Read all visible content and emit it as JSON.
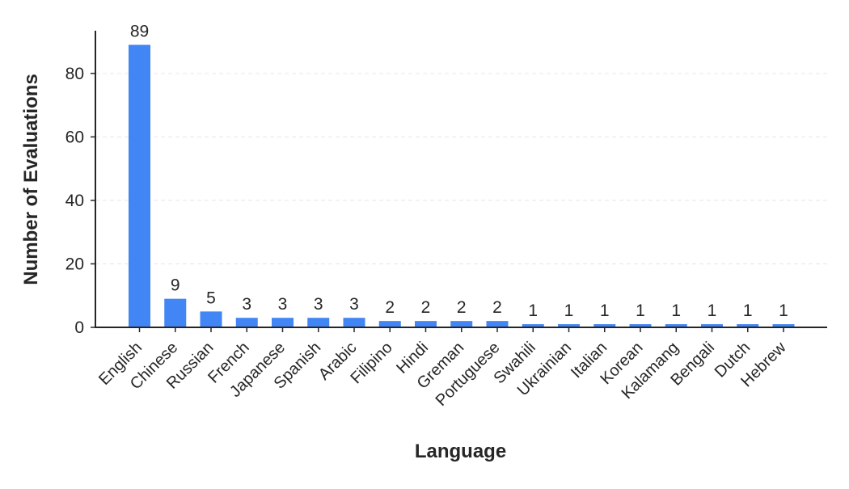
{
  "chart_data": {
    "type": "bar",
    "title": "",
    "xlabel": "Language",
    "ylabel": "Number of Evaluations",
    "categories": [
      "English",
      "Chinese",
      "Russian",
      "French",
      "Japanese",
      "Spanish",
      "Arabic",
      "Filipino",
      "Hindi",
      "Greman",
      "Portuguese",
      "Swahili",
      "Ukrainian",
      "Italian",
      "Korean",
      "Kalamang",
      "Bengali",
      "Dutch",
      "Hebrew"
    ],
    "values": [
      89,
      9,
      5,
      3,
      3,
      3,
      3,
      2,
      2,
      2,
      2,
      1,
      1,
      1,
      1,
      1,
      1,
      1,
      1
    ],
    "data_labels": [
      "89",
      "9",
      "5",
      "3",
      "3",
      "3",
      "3",
      "2",
      "2",
      "2",
      "2",
      "1",
      "1",
      "1",
      "1",
      "1",
      "1",
      "1",
      "1"
    ],
    "ylim": [
      0,
      93.45
    ],
    "yticks": [
      0,
      20,
      40,
      60,
      80
    ],
    "ytick_labels": [
      "0",
      "20",
      "40",
      "60",
      "80"
    ],
    "grid": "horizontal dashed",
    "legend": "none",
    "colors": {
      "bar": "#4285f4",
      "axis": "#262626",
      "grid": "#e6e6e6",
      "text": "#262626"
    }
  }
}
